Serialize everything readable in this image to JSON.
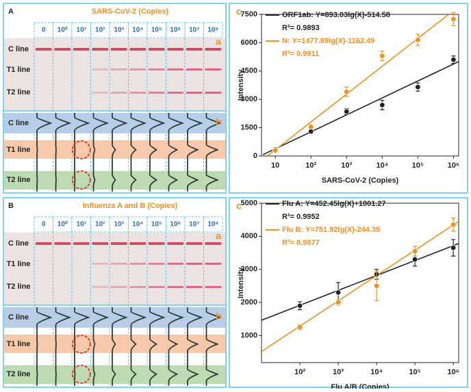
{
  "panels": [
    {
      "label": "A",
      "title": "SARS-CoV-2 (Copies)",
      "columns": [
        "0",
        "10⁰",
        "10¹",
        "10²",
        "10³",
        "10⁴",
        "10⁵",
        "10⁶",
        "10⁷",
        "10⁸"
      ],
      "rows": [
        "C line",
        "T1 line",
        "T2 line"
      ],
      "sub_a": "a",
      "sub_b": "b"
    },
    {
      "label": "B",
      "title": "Influenza A and B (Copies)",
      "columns": [
        "0",
        "10⁰",
        "10¹",
        "10²",
        "10³",
        "10⁴",
        "10⁵",
        "10⁶",
        "10⁷",
        "10⁸"
      ],
      "rows": [
        "C line",
        "T1 line",
        "T2 line"
      ],
      "sub_a": "a",
      "sub_b": "b"
    }
  ],
  "chart_data": [
    {
      "type": "scatter",
      "panel_label": "c",
      "xlabel": "SARS-CoV-2  (Copies)",
      "ylabel": "Intensity",
      "xscale": "log",
      "xlim": [
        4.1,
        1400000
      ],
      "ylim": [
        0,
        7500
      ],
      "xticks": [
        10,
        {
          "value": 100,
          "label": "10²"
        },
        {
          "value": 1000,
          "label": "10³"
        },
        {
          "value": 10000,
          "label": "10⁴"
        },
        {
          "value": 100000,
          "label": "10⁵"
        },
        {
          "value": 1000000,
          "label": "10⁶"
        }
      ],
      "yticks": [
        0,
        1500,
        3000,
        4500,
        6000,
        7500
      ],
      "series": [
        {
          "name": "ORF1ab: Y=893.03lg(X)-514.58",
          "r2": "R²= 0.9893",
          "color": "#222222",
          "x": [
            10,
            100,
            1000,
            10000,
            100000,
            1000000
          ],
          "values": [
            350,
            1300,
            2350,
            2700,
            3650,
            5100
          ],
          "errors": [
            100,
            120,
            150,
            250,
            220,
            200
          ]
        },
        {
          "name": "N: Y=1477.89lg(X)-1162.49",
          "r2": "R²= 0.9911",
          "color": "#f0901e",
          "x": [
            10,
            100,
            1000,
            10000,
            100000,
            1000000
          ],
          "values": [
            300,
            1550,
            3400,
            5300,
            6150,
            7250
          ],
          "errors": [
            100,
            100,
            250,
            250,
            300,
            350
          ]
        }
      ],
      "fits": [
        {
          "color": "#222222",
          "x": [
            4.5,
            1400000
          ],
          "values": [
            70,
            5000
          ]
        },
        {
          "color": "#f0901e",
          "x": [
            6,
            1000000
          ],
          "values": [
            0,
            7700
          ]
        }
      ]
    },
    {
      "type": "scatter",
      "panel_label": "c",
      "xlabel": "Flu A/B (Copies)",
      "ylabel": "Intensity",
      "xscale": "log",
      "xlim": [
        10,
        1380000
      ],
      "ylim": [
        180,
        5000
      ],
      "xticks": [
        {
          "value": 100,
          "label": "10²"
        },
        {
          "value": 1000,
          "label": "10³"
        },
        {
          "value": 10000,
          "label": "10⁴"
        },
        {
          "value": 100000,
          "label": "10⁵"
        },
        {
          "value": 1000000,
          "label": "10⁶"
        }
      ],
      "yticks": [
        1000,
        2000,
        3000,
        4000,
        5000
      ],
      "series": [
        {
          "name": "Flu A: Y=452.45lg(X)+1001.27",
          "r2": "R²= 0.9952",
          "color": "#222222",
          "x": [
            100,
            1000,
            10000,
            100000,
            1000000
          ],
          "values": [
            1900,
            2300,
            2850,
            3300,
            3650
          ],
          "errors": [
            120,
            300,
            150,
            200,
            250
          ]
        },
        {
          "name": "Flu B: Y=751.92lg(X)-244.35",
          "r2": "R²= 0.9877",
          "color": "#f0901e",
          "x": [
            100,
            1000,
            10000,
            100000,
            1000000
          ],
          "values": [
            1250,
            2000,
            2500,
            3550,
            4350
          ],
          "errors": [
            80,
            80,
            450,
            150,
            200
          ]
        }
      ],
      "fits": [
        {
          "color": "#222222",
          "x": [
            10,
            1380000
          ],
          "values": [
            1460,
            3780
          ]
        },
        {
          "color": "#f0901e",
          "x": [
            10,
            1380000
          ],
          "values": [
            515,
            4450
          ]
        }
      ]
    }
  ]
}
